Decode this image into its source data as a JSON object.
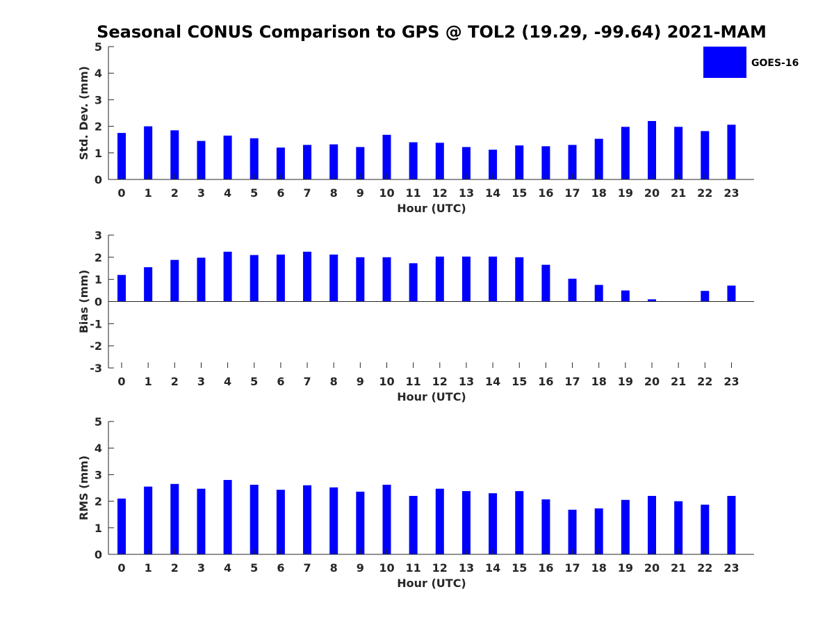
{
  "title": "Seasonal CONUS Comparison to GPS @ TOL2 (19.29, -99.64) 2021-MAM",
  "legend": {
    "label": "GOES-16",
    "placement": "top-right"
  },
  "colors": {
    "bar": "#0000ff",
    "axis": "#262626"
  },
  "chart_data": [
    {
      "type": "bar",
      "title": "Seasonal CONUS Comparison to GPS @ TOL2 (19.29, -99.64) 2021-MAM",
      "xlabel": "Hour (UTC)",
      "ylabel": "Std. Dev. (mm)",
      "ylim": [
        0,
        5
      ],
      "yticks": [
        0,
        1,
        2,
        3,
        4,
        5
      ],
      "grid": false,
      "categories": [
        "0",
        "1",
        "2",
        "3",
        "4",
        "5",
        "6",
        "7",
        "8",
        "9",
        "10",
        "11",
        "12",
        "13",
        "14",
        "15",
        "16",
        "17",
        "18",
        "19",
        "20",
        "21",
        "22",
        "23"
      ],
      "series": [
        {
          "name": "GOES-16",
          "values": [
            1.75,
            2.0,
            1.85,
            1.45,
            1.65,
            1.55,
            1.2,
            1.3,
            1.32,
            1.22,
            1.68,
            1.4,
            1.38,
            1.22,
            1.12,
            1.28,
            1.25,
            1.3,
            1.53,
            1.98,
            2.2,
            1.98,
            1.82,
            2.06
          ]
        }
      ]
    },
    {
      "type": "bar",
      "xlabel": "Hour (UTC)",
      "ylabel": "Bias (mm)",
      "ylim": [
        -3,
        3
      ],
      "yticks": [
        -3,
        -2,
        -1,
        0,
        1,
        2,
        3
      ],
      "grid": false,
      "categories": [
        "0",
        "1",
        "2",
        "3",
        "4",
        "5",
        "6",
        "7",
        "8",
        "9",
        "10",
        "11",
        "12",
        "13",
        "14",
        "15",
        "16",
        "17",
        "18",
        "19",
        "20",
        "21",
        "22",
        "23"
      ],
      "series": [
        {
          "name": "GOES-16",
          "values": [
            1.2,
            1.55,
            1.88,
            1.98,
            2.25,
            2.1,
            2.12,
            2.25,
            2.12,
            2.0,
            2.0,
            1.73,
            2.03,
            2.03,
            2.03,
            2.0,
            1.66,
            1.03,
            0.75,
            0.5,
            0.1,
            0.0,
            0.48,
            0.72
          ]
        }
      ]
    },
    {
      "type": "bar",
      "xlabel": "Hour (UTC)",
      "ylabel": "RMS (mm)",
      "ylim": [
        0,
        5
      ],
      "yticks": [
        0,
        1,
        2,
        3,
        4,
        5
      ],
      "grid": false,
      "categories": [
        "0",
        "1",
        "2",
        "3",
        "4",
        "5",
        "6",
        "7",
        "8",
        "9",
        "10",
        "11",
        "12",
        "13",
        "14",
        "15",
        "16",
        "17",
        "18",
        "19",
        "20",
        "21",
        "22",
        "23"
      ],
      "series": [
        {
          "name": "GOES-16",
          "values": [
            2.1,
            2.55,
            2.65,
            2.47,
            2.8,
            2.62,
            2.43,
            2.6,
            2.52,
            2.36,
            2.62,
            2.2,
            2.47,
            2.38,
            2.3,
            2.38,
            2.07,
            1.68,
            1.73,
            2.05,
            2.2,
            2.0,
            1.87,
            2.2
          ]
        }
      ]
    }
  ]
}
